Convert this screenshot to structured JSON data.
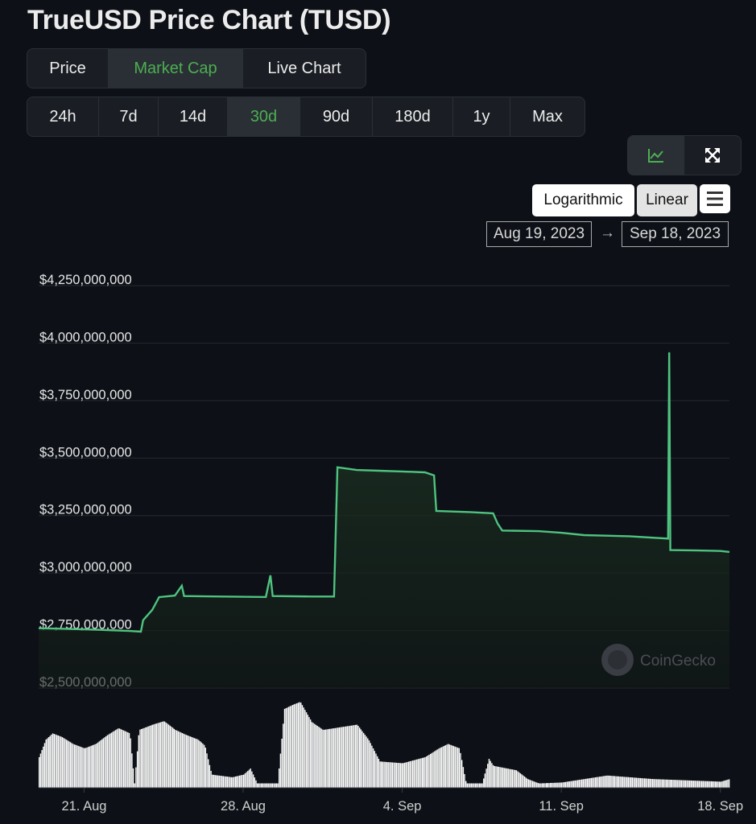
{
  "title": "TrueUSD Price Chart (TUSD)",
  "type_tabs": [
    {
      "label": "Price",
      "active": false,
      "width": 101
    },
    {
      "label": "Market Cap",
      "active": true,
      "width": 167
    },
    {
      "label": "Live Chart",
      "active": false,
      "width": 152
    }
  ],
  "range_tabs": [
    {
      "label": "24h",
      "active": false,
      "width": 89
    },
    {
      "label": "7d",
      "active": false,
      "width": 74
    },
    {
      "label": "14d",
      "active": false,
      "width": 86
    },
    {
      "label": "30d",
      "active": true,
      "width": 90
    },
    {
      "label": "90d",
      "active": false,
      "width": 90
    },
    {
      "label": "180d",
      "active": false,
      "width": 100
    },
    {
      "label": "1y",
      "active": false,
      "width": 71
    },
    {
      "label": "Max",
      "active": false,
      "width": 92
    }
  ],
  "view_buttons": [
    {
      "icon": "line-chart-icon",
      "active": true
    },
    {
      "icon": "fullscreen-icon",
      "active": false
    }
  ],
  "scale": {
    "log_label": "Logarithmic",
    "linear_label": "Linear"
  },
  "date_range": {
    "from": "Aug 19, 2023",
    "arrow": "→",
    "to": "Sep 18, 2023"
  },
  "watermark": "CoinGecko",
  "colors": {
    "line": "#4fc37f",
    "active_tab": "#4caf50",
    "volume": "#ffffff"
  },
  "chart_data": {
    "type": "line",
    "y_tick_labels": [
      "$4,250,000,000",
      "$4,000,000,000",
      "$3,750,000,000",
      "$3,500,000,000",
      "$3,250,000,000",
      "$3,000,000,000",
      "$2,750,000,000",
      "$2,500,000,000"
    ],
    "y_ticks": [
      4250000000,
      4000000000,
      3750000000,
      3500000000,
      3250000000,
      3000000000,
      2750000000,
      2500000000
    ],
    "x_tick_labels": [
      "21. Aug",
      "28. Aug",
      "4. Sep",
      "11. Sep",
      "18. Sep"
    ],
    "x_ticks": [
      2,
      9,
      16,
      23,
      30
    ],
    "x_range": [
      0,
      30.4
    ],
    "ylim": [
      2500000000,
      4250000000
    ],
    "grid": true,
    "series": [
      {
        "points": [
          [
            0,
            2760000000
          ],
          [
            1,
            2758000000
          ],
          [
            2,
            2755000000
          ],
          [
            3,
            2752000000
          ],
          [
            4,
            2748000000
          ],
          [
            4.5,
            2745000000
          ],
          [
            4.6,
            2795000000
          ],
          [
            5.0,
            2840000000
          ],
          [
            5.3,
            2895000000
          ],
          [
            6,
            2902000000
          ],
          [
            6.3,
            2945000000
          ],
          [
            6.4,
            2900000000
          ],
          [
            8,
            2898000000
          ],
          [
            10,
            2896000000
          ],
          [
            10.2,
            2990000000
          ],
          [
            10.3,
            2900000000
          ],
          [
            12,
            2898000000
          ],
          [
            13,
            2898000000
          ],
          [
            13.15,
            3460000000
          ],
          [
            14,
            3448000000
          ],
          [
            15,
            3445000000
          ],
          [
            16,
            3442000000
          ],
          [
            17,
            3438000000
          ],
          [
            17.4,
            3425000000
          ],
          [
            17.5,
            3270000000
          ],
          [
            19,
            3265000000
          ],
          [
            20,
            3260000000
          ],
          [
            20.2,
            3215000000
          ],
          [
            20.4,
            3185000000
          ],
          [
            22,
            3182000000
          ],
          [
            23,
            3175000000
          ],
          [
            24,
            3165000000
          ],
          [
            26,
            3160000000
          ],
          [
            27.7,
            3150000000
          ],
          [
            27.75,
            3960000000
          ],
          [
            27.8,
            3100000000
          ],
          [
            29,
            3098000000
          ],
          [
            30,
            3096000000
          ],
          [
            30.4,
            3092000000
          ]
        ]
      }
    ],
    "volume": [
      [
        0,
        0.35
      ],
      [
        0.3,
        0.55
      ],
      [
        0.6,
        0.62
      ],
      [
        1,
        0.58
      ],
      [
        1.5,
        0.5
      ],
      [
        2,
        0.45
      ],
      [
        2.5,
        0.5
      ],
      [
        3,
        0.6
      ],
      [
        3.5,
        0.68
      ],
      [
        4,
        0.62
      ],
      [
        4.2,
        0.05
      ],
      [
        4.4,
        0.66
      ],
      [
        5,
        0.72
      ],
      [
        5.5,
        0.76
      ],
      [
        6,
        0.66
      ],
      [
        6.5,
        0.6
      ],
      [
        7,
        0.55
      ],
      [
        7.3,
        0.48
      ],
      [
        7.6,
        0.15
      ],
      [
        8.5,
        0.12
      ],
      [
        9,
        0.15
      ],
      [
        9.3,
        0.22
      ],
      [
        9.6,
        0.05
      ],
      [
        10.5,
        0.05
      ],
      [
        10.8,
        0.9
      ],
      [
        11.2,
        0.95
      ],
      [
        11.5,
        0.98
      ],
      [
        12,
        0.75
      ],
      [
        12.5,
        0.66
      ],
      [
        13,
        0.68
      ],
      [
        14,
        0.72
      ],
      [
        14.5,
        0.55
      ],
      [
        15,
        0.3
      ],
      [
        16,
        0.28
      ],
      [
        17,
        0.35
      ],
      [
        17.6,
        0.45
      ],
      [
        18,
        0.5
      ],
      [
        18.5,
        0.45
      ],
      [
        18.8,
        0.05
      ],
      [
        19.5,
        0.05
      ],
      [
        19.8,
        0.33
      ],
      [
        20,
        0.25
      ],
      [
        21,
        0.2
      ],
      [
        21.5,
        0.1
      ],
      [
        22,
        0.05
      ],
      [
        23,
        0.06
      ],
      [
        24,
        0.1
      ],
      [
        24.5,
        0.12
      ],
      [
        25,
        0.14
      ],
      [
        26,
        0.12
      ],
      [
        27,
        0.1
      ],
      [
        28,
        0.09
      ],
      [
        29,
        0.08
      ],
      [
        30,
        0.07
      ],
      [
        30.4,
        0.1
      ]
    ]
  }
}
